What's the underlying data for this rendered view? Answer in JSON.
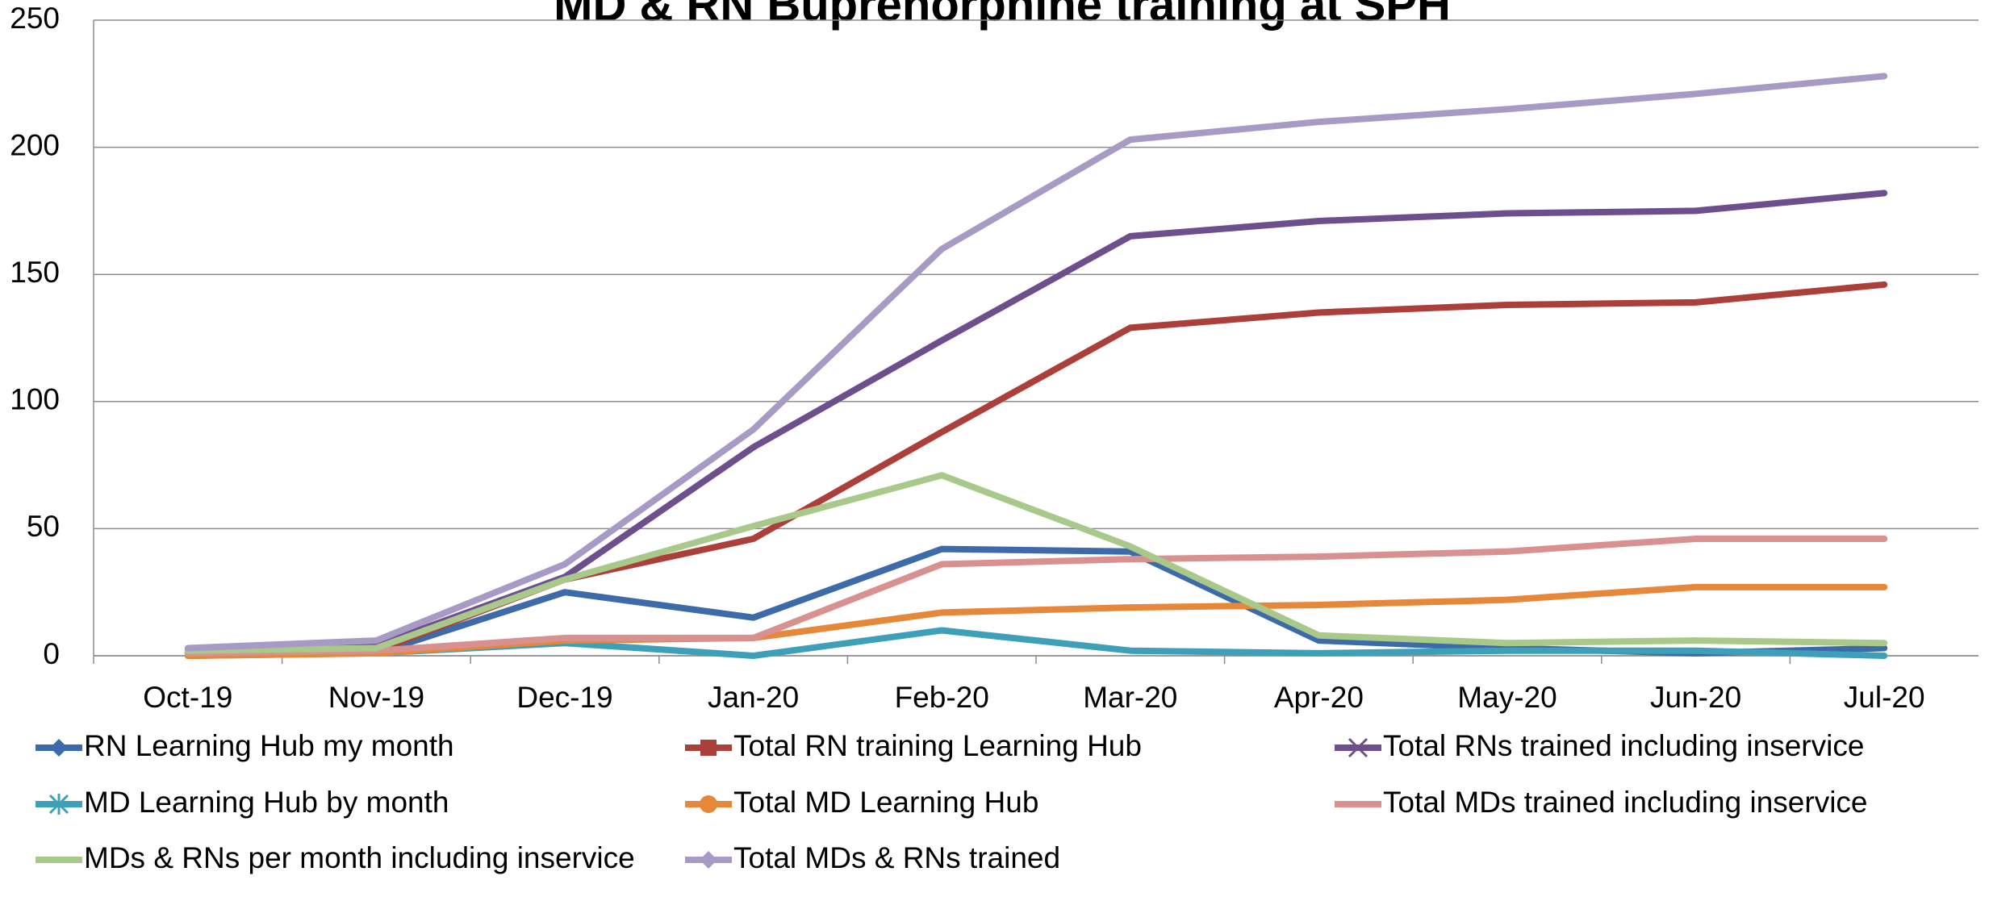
{
  "chart_data": {
    "type": "line",
    "title": "MD & RN Buprenorphine training at SPH",
    "categories": [
      "Oct-19",
      "Nov-19",
      "Dec-19",
      "Jan-20",
      "Feb-20",
      "Mar-20",
      "Apr-20",
      "May-20",
      "Jun-20",
      "Jul-20"
    ],
    "ylim": [
      0,
      250
    ],
    "yticks": [
      0,
      50,
      100,
      150,
      200,
      250
    ],
    "grid": true,
    "series": [
      {
        "name": "RN Learning Hub my month",
        "color": "#3d6aa8",
        "marker": "diamond",
        "values": [
          1,
          1,
          25,
          15,
          42,
          41,
          6,
          3,
          1,
          3
        ]
      },
      {
        "name": "Total RN training Learning Hub",
        "color": "#ad3f3a",
        "marker": "square",
        "values": [
          1,
          2,
          30,
          46,
          88,
          129,
          135,
          138,
          139,
          146
        ]
      },
      {
        "name": "Total RNs trained including inservice",
        "color": "#6d4f8d",
        "marker": "x",
        "values": [
          2,
          4,
          31,
          82,
          124,
          165,
          171,
          174,
          175,
          182
        ]
      },
      {
        "name": "MD Learning Hub by month",
        "color": "#3ea0b8",
        "marker": "star",
        "values": [
          0,
          1,
          5,
          0,
          10,
          2,
          1,
          2,
          2,
          0
        ]
      },
      {
        "name": "Total MD Learning Hub",
        "color": "#e6873a",
        "marker": "circle",
        "values": [
          0,
          1,
          6,
          7,
          17,
          19,
          20,
          22,
          27,
          27
        ]
      },
      {
        "name": "Total MDs trained including inservice",
        "color": "#d8918e",
        "marker": "none",
        "values": [
          1,
          2,
          7,
          7,
          36,
          38,
          39,
          41,
          46,
          46
        ]
      },
      {
        "name": "MDs & RNs per month including inservice",
        "color": "#a8c98a",
        "marker": "none",
        "values": [
          2,
          3,
          30,
          51,
          71,
          43,
          8,
          5,
          6,
          5
        ]
      },
      {
        "name": "Total MDs & RNs trained",
        "color": "#a79ac4",
        "marker": "diamond",
        "values": [
          3,
          6,
          36,
          89,
          160,
          203,
          210,
          215,
          221,
          228
        ]
      }
    ]
  }
}
